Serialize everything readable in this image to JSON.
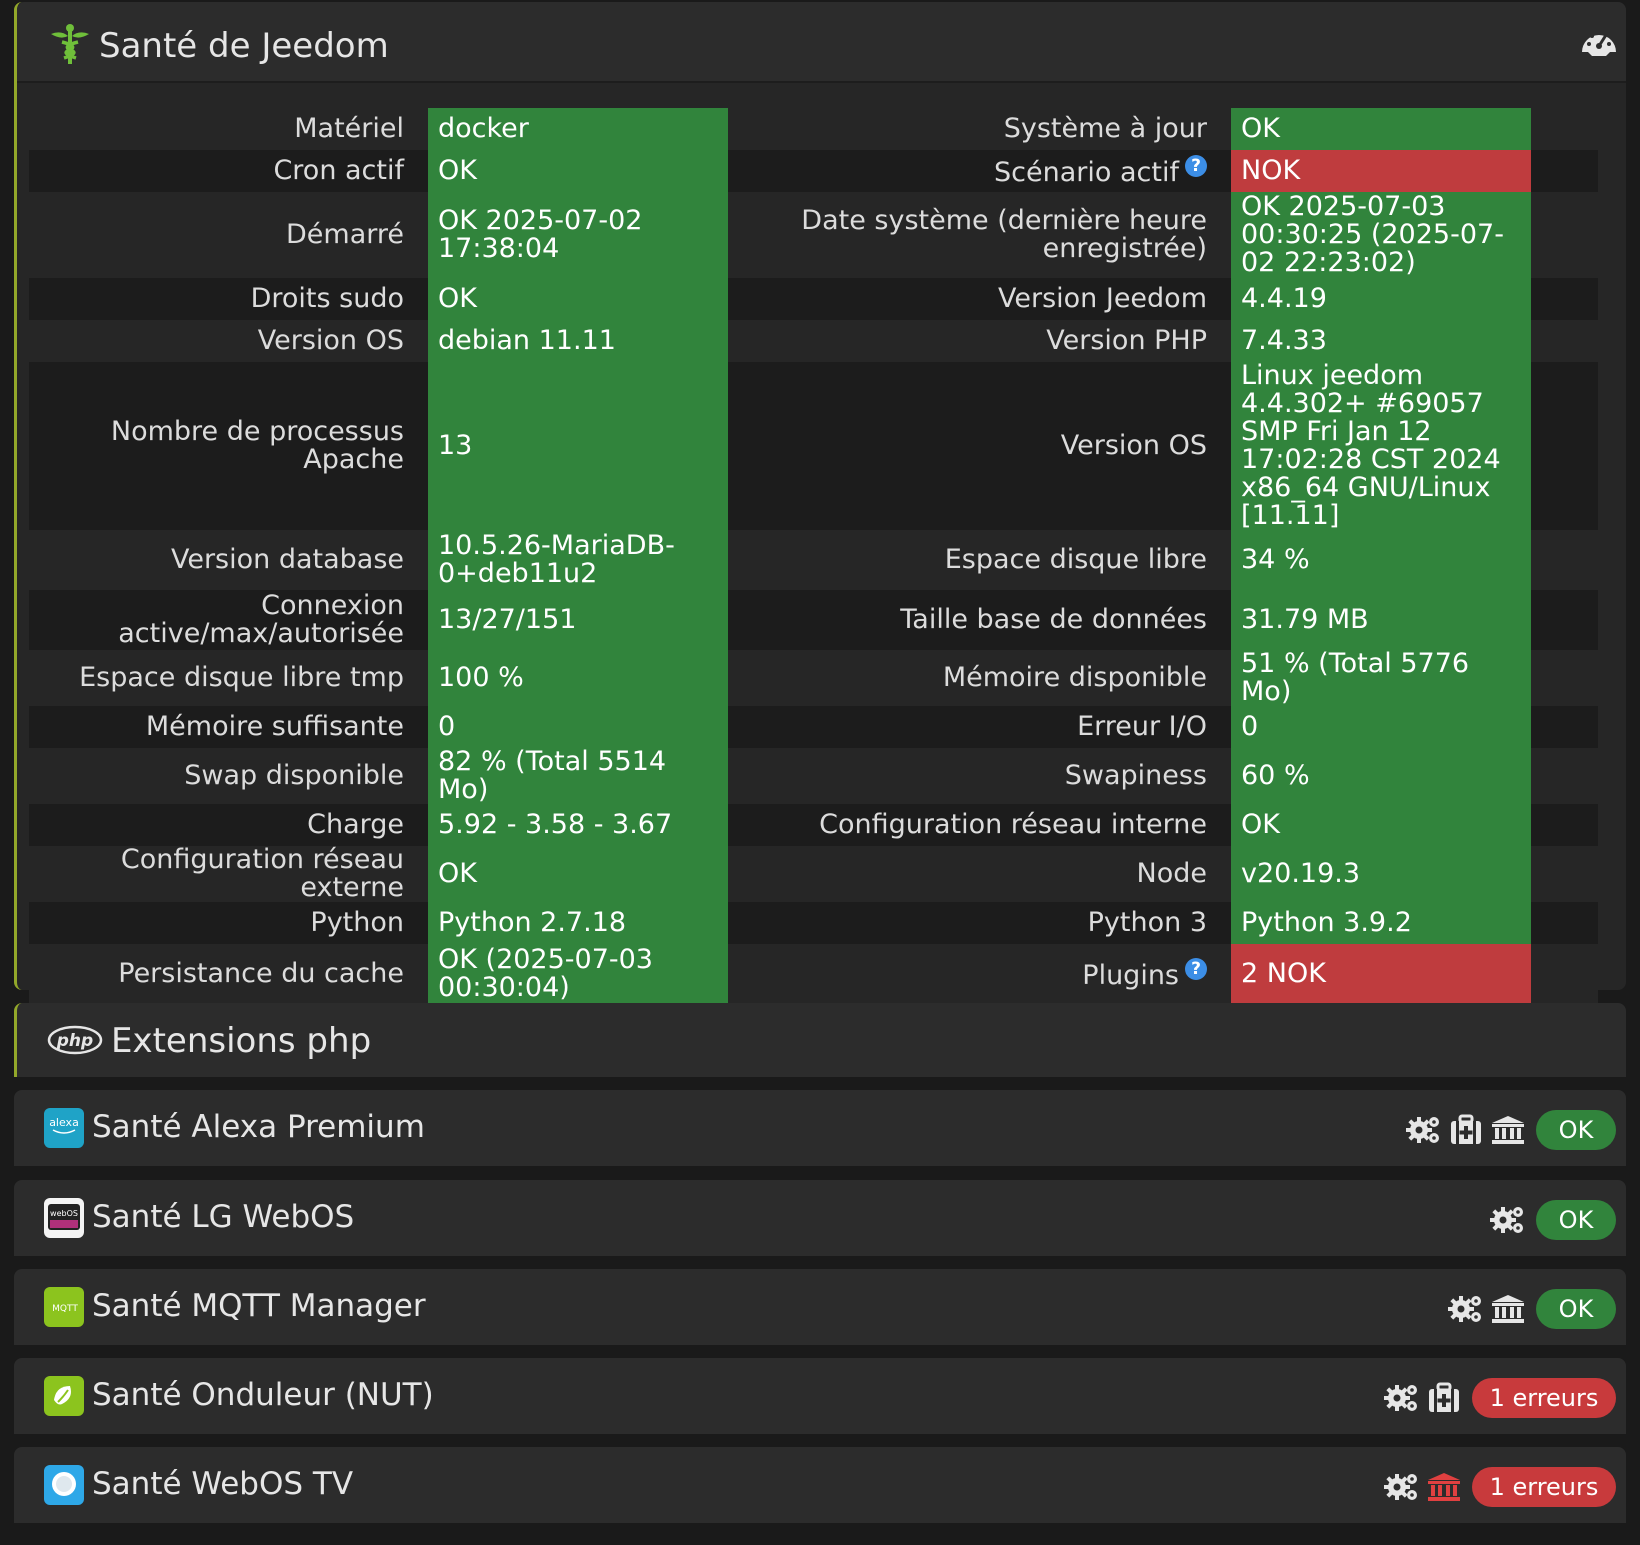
{
  "health_panel": {
    "title": "Santé de Jeedom",
    "rows": [
      {
        "l_label": "Matériel",
        "l_value": "docker",
        "l_status": "ok",
        "r_label": "Système à jour",
        "r_value": "OK",
        "r_status": "ok",
        "r_help": false
      },
      {
        "l_label": "Cron actif",
        "l_value": "OK",
        "l_status": "ok",
        "r_label": "Scénario actif",
        "r_value": "NOK",
        "r_status": "nok",
        "r_help": true
      },
      {
        "l_label": "Démarré",
        "l_value": "OK 2025-07-02 17:38:04",
        "l_status": "ok",
        "r_label": "Date système (dernière heure enregistrée)",
        "r_value": "OK 2025-07-03 00:30:25 (2025-07-02 22:23:02)",
        "r_status": "ok",
        "r_help": false
      },
      {
        "l_label": "Droits sudo",
        "l_value": "OK",
        "l_status": "ok",
        "r_label": "Version Jeedom",
        "r_value": "4.4.19",
        "r_status": "ok",
        "r_help": false
      },
      {
        "l_label": "Version OS",
        "l_value": "debian 11.11",
        "l_status": "ok",
        "r_label": "Version PHP",
        "r_value": "7.4.33",
        "r_status": "ok",
        "r_help": false
      },
      {
        "l_label": "Nombre de processus Apache",
        "l_value": "13",
        "l_status": "ok",
        "r_label": "Version OS",
        "r_value": "Linux jeedom 4.4.302+ #69057 SMP Fri Jan 12 17:02:28 CST 2024 x86_64 GNU/Linux [11.11]",
        "r_status": "ok",
        "r_help": false
      },
      {
        "l_label": "Version database",
        "l_value": "10.5.26-MariaDB-0+deb11u2",
        "l_status": "ok",
        "r_label": "Espace disque libre",
        "r_value": "34 %",
        "r_status": "ok",
        "r_help": false
      },
      {
        "l_label": "Connexion active/max/autorisée",
        "l_value": "13/27/151",
        "l_status": "ok",
        "r_label": "Taille base de données",
        "r_value": "31.79 MB",
        "r_status": "ok",
        "r_help": false
      },
      {
        "l_label": "Espace disque libre tmp",
        "l_value": "100 %",
        "l_status": "ok",
        "r_label": "Mémoire disponible",
        "r_value": "51 % (Total 5776 Mo)",
        "r_status": "ok",
        "r_help": false
      },
      {
        "l_label": "Mémoire suffisante",
        "l_value": "0",
        "l_status": "ok",
        "r_label": "Erreur I/O",
        "r_value": "0",
        "r_status": "ok",
        "r_help": false
      },
      {
        "l_label": "Swap disponible",
        "l_value": "82 % (Total 5514 Mo)",
        "l_status": "ok",
        "r_label": "Swapiness",
        "r_value": "60 %",
        "r_status": "ok",
        "r_help": false
      },
      {
        "l_label": "Charge",
        "l_value": "5.92 - 3.58 - 3.67",
        "l_status": "ok",
        "r_label": "Configuration réseau interne",
        "r_value": "OK",
        "r_status": "ok",
        "r_help": false
      },
      {
        "l_label": "Configuration réseau externe",
        "l_value": "OK",
        "l_status": "ok",
        "r_label": "Node",
        "r_value": "v20.19.3",
        "r_status": "ok",
        "r_help": false
      },
      {
        "l_label": "Python",
        "l_value": "Python 2.7.18",
        "l_status": "ok",
        "r_label": "Python 3",
        "r_value": "Python 3.9.2",
        "r_status": "ok",
        "r_help": false
      },
      {
        "l_label": "Persistance du cache",
        "l_value": "OK (2025-07-03 00:30:04)",
        "l_status": "ok",
        "r_label": "Plugins",
        "r_value": "2 NOK",
        "r_status": "nok",
        "r_help": true
      }
    ],
    "help_glyph": "?"
  },
  "php_panel": {
    "title": "Extensions php",
    "logo_text": "php"
  },
  "plugins": [
    {
      "name": "Santé Alexa Premium",
      "icon": "alexa-icon",
      "icon_text": "alexa",
      "actions": [
        "gears-icon",
        "medkit-icon",
        "bank-icon"
      ],
      "status": "OK",
      "status_type": "ok"
    },
    {
      "name": "Santé LG WebOS",
      "icon": "webos-icon",
      "icon_text": "webOS",
      "actions": [
        "gears-icon"
      ],
      "status": "OK",
      "status_type": "ok"
    },
    {
      "name": "Santé MQTT Manager",
      "icon": "mqtt-icon",
      "icon_text": "MQTT",
      "actions": [
        "gears-icon",
        "bank-icon"
      ],
      "status": "OK",
      "status_type": "ok"
    },
    {
      "name": "Santé Onduleur (NUT)",
      "icon": "nut-icon",
      "icon_text": "",
      "actions": [
        "gears-icon",
        "medkit-icon"
      ],
      "status": "1 erreurs",
      "status_type": "err"
    },
    {
      "name": "Santé WebOS TV",
      "icon": "webostv-icon",
      "icon_text": "",
      "actions": [
        "gears-icon",
        "bank-icon-red"
      ],
      "status": "1 erreurs",
      "status_type": "err"
    }
  ],
  "colors": {
    "ok": "#31843c",
    "nok": "#bf3c3e",
    "accent": "#93a82a",
    "help": "#3c8ee6",
    "bank_red": "#e04040"
  }
}
